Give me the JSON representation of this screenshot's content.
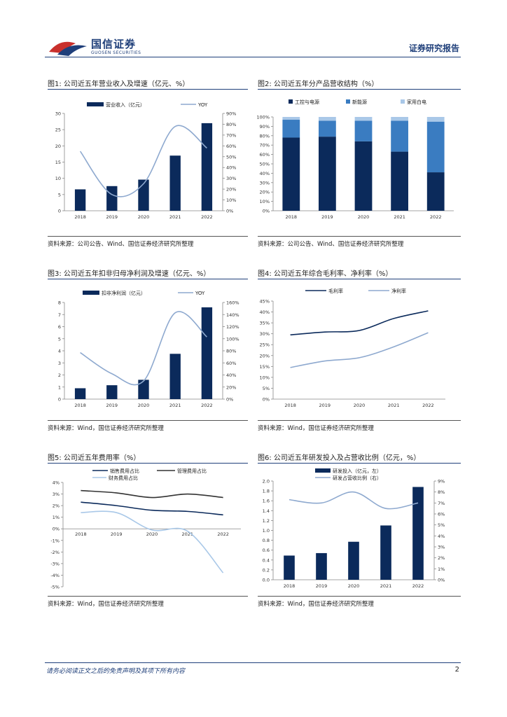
{
  "header": {
    "company_cn": "国信证券",
    "company_en": "GUOSEN SECURITIES",
    "report_type": "证券研究报告"
  },
  "footer": {
    "disclaimer": "请务必阅读正文之后的免责声明及其项下所有内容",
    "page": "2"
  },
  "figures": [
    {
      "title": "图1: 公司近五年营业收入及增速（亿元、%）",
      "source": "资料来源：公司公告、Wind、国信证券经济研究所整理"
    },
    {
      "title": "图2: 公司近五年分产品营收结构（%）",
      "source": "资料来源：公司公告、Wind、国信证券经济研究所整理"
    },
    {
      "title": "图3: 公司近五年扣非归母净利润及增速（亿元、%）",
      "source": "资料来源：Wind，国信证券经济研究所整理"
    },
    {
      "title": "图4: 公司近五年综合毛利率、净利率（%）",
      "source": "资料来源：Wind，国信证券经济研究所整理"
    },
    {
      "title": "图5: 公司近五年费用率（%）",
      "source": "资料来源：Wind，国信证券经济研究所整理"
    },
    {
      "title": "图6: 公司近五年研发投入及占营收比例（亿元，%）",
      "source": "资料来源：Wind，国信证券经济研究所整理"
    }
  ],
  "colors": {
    "navy": "#0b2a5b",
    "mid_blue": "#3a7cc1",
    "light_blue": "#a9c8e8",
    "gray_blue": "#8ea9cf",
    "brand": "#1f3f7a"
  },
  "chart_data": [
    {
      "type": "bar+line",
      "categories": [
        "2018",
        "2019",
        "2020",
        "2021",
        "2022"
      ],
      "series": [
        {
          "name": "营业收入（亿元）",
          "kind": "bar",
          "axis": "left",
          "values": [
            6.6,
            7.6,
            9.6,
            17.0,
            27.0
          ]
        },
        {
          "name": "YOY",
          "kind": "line",
          "axis": "right",
          "values": [
            55,
            15,
            25,
            78,
            58
          ]
        }
      ],
      "yleft": {
        "min": 0,
        "max": 30,
        "step": 5,
        "ticks": [
          "0",
          "5",
          "10",
          "15",
          "20",
          "25",
          "30"
        ]
      },
      "yright": {
        "min": 0,
        "max": 90,
        "step": 10,
        "ticks": [
          "0%",
          "10%",
          "20%",
          "30%",
          "40%",
          "50%",
          "60%",
          "70%",
          "80%",
          "90%"
        ]
      }
    },
    {
      "type": "stacked-bar",
      "categories": [
        "2018",
        "2019",
        "2020",
        "2021",
        "2022"
      ],
      "series": [
        {
          "name": "工控与电源",
          "values": [
            78,
            79,
            74,
            63,
            41
          ]
        },
        {
          "name": "新能源",
          "values": [
            19,
            17,
            22,
            33,
            54
          ]
        },
        {
          "name": "家用白电",
          "values": [
            3,
            4,
            4,
            4,
            5
          ]
        }
      ],
      "yleft": {
        "min": 0,
        "max": 100,
        "step": 10,
        "ticks": [
          "0%",
          "10%",
          "20%",
          "30%",
          "40%",
          "50%",
          "60%",
          "70%",
          "80%",
          "90%",
          "100%"
        ]
      }
    },
    {
      "type": "bar+line",
      "categories": [
        "2018",
        "2019",
        "2020",
        "2021",
        "2022"
      ],
      "series": [
        {
          "name": "扣非净利润（亿元）",
          "kind": "bar",
          "axis": "left",
          "values": [
            0.9,
            1.15,
            1.6,
            3.75,
            7.6
          ]
        },
        {
          "name": "YOY",
          "kind": "line",
          "axis": "right",
          "values": [
            77,
            42,
            30,
            143,
            103
          ]
        }
      ],
      "yleft": {
        "min": 0,
        "max": 8,
        "step": 1,
        "ticks": [
          "0",
          "1",
          "2",
          "3",
          "4",
          "5",
          "6",
          "7",
          "8"
        ]
      },
      "yright": {
        "min": 0,
        "max": 160,
        "step": 20,
        "ticks": [
          "0%",
          "20%",
          "40%",
          "60%",
          "80%",
          "100%",
          "120%",
          "140%",
          "160%"
        ]
      }
    },
    {
      "type": "line",
      "categories": [
        "2018",
        "2019",
        "2020",
        "2021",
        "2022"
      ],
      "series": [
        {
          "name": "毛利率",
          "values": [
            29.5,
            30.8,
            31.5,
            37.0,
            40.5
          ]
        },
        {
          "name": "净利率",
          "values": [
            14.5,
            17.5,
            19.0,
            24.0,
            30.5
          ]
        }
      ],
      "yleft": {
        "min": 0,
        "max": 45,
        "step": 5,
        "ticks": [
          "0%",
          "5%",
          "10%",
          "15%",
          "20%",
          "25%",
          "30%",
          "35%",
          "40%",
          "45%"
        ]
      }
    },
    {
      "type": "line",
      "categories": [
        "2018",
        "2019",
        "2020",
        "2021",
        "2022"
      ],
      "series": [
        {
          "name": "销售费用占比",
          "values": [
            2.3,
            2.0,
            1.6,
            1.5,
            1.2
          ]
        },
        {
          "name": "管理费用占比",
          "values": [
            3.3,
            3.1,
            2.7,
            3.0,
            2.7
          ]
        },
        {
          "name": "财务费用占比",
          "values": [
            1.4,
            1.4,
            -0.1,
            -0.2,
            -3.8
          ]
        }
      ],
      "yleft": {
        "min": -5,
        "max": 4,
        "step": 1,
        "ticks": [
          "-5%",
          "-4%",
          "-3%",
          "-2%",
          "-1%",
          "0%",
          "1%",
          "2%",
          "3%",
          "4%"
        ]
      }
    },
    {
      "type": "bar+line",
      "categories": [
        "2018",
        "2019",
        "2020",
        "2021",
        "2022"
      ],
      "series": [
        {
          "name": "研发投入（亿元，左）",
          "kind": "bar",
          "axis": "left",
          "values": [
            0.49,
            0.54,
            0.77,
            1.1,
            1.88
          ]
        },
        {
          "name": "研发占营收比例（右）",
          "kind": "line",
          "axis": "right",
          "values": [
            7.3,
            7.0,
            8.0,
            6.5,
            7.0
          ]
        }
      ],
      "yleft": {
        "min": 0,
        "max": 2.0,
        "step": 0.2,
        "ticks": [
          "0.0",
          "0.2",
          "0.4",
          "0.6",
          "0.8",
          "1.0",
          "1.2",
          "1.4",
          "1.6",
          "1.8",
          "2.0"
        ]
      },
      "yright": {
        "min": 0,
        "max": 9,
        "step": 1,
        "ticks": [
          "0%",
          "1%",
          "2%",
          "3%",
          "4%",
          "5%",
          "6%",
          "7%",
          "8%",
          "9%"
        ]
      }
    }
  ]
}
